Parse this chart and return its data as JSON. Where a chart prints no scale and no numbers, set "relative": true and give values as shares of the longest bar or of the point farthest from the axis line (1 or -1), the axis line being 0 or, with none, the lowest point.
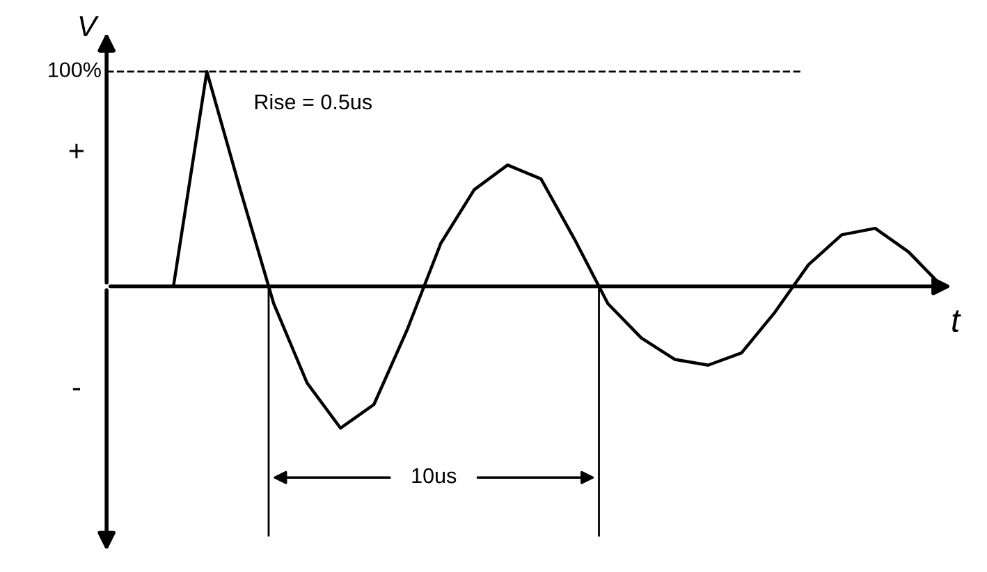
{
  "chart_data": {
    "type": "line",
    "relative": true,
    "xlabel": "t",
    "ylabel": "V",
    "categories": [
      null,
      null,
      null,
      null,
      null,
      null,
      null,
      null,
      null,
      null,
      null,
      null,
      null,
      null,
      null,
      null,
      null,
      null,
      null,
      null,
      null,
      null,
      null,
      null,
      null,
      null
    ],
    "series": [
      {
        "color": "#000000",
        "values": [
          null,
          null,
          0,
          1,
          0.45,
          -0.08,
          -0.45,
          -0.66,
          -0.55,
          -0.2,
          0.2,
          0.45,
          0.565,
          0.5,
          0.22,
          -0.08,
          -0.24,
          -0.34,
          -0.367,
          -0.31,
          -0.12,
          0.1,
          0.24,
          0.27,
          0.16,
          0
        ]
      }
    ],
    "ref_lines": [
      {
        "axis": "y",
        "value": 1,
        "label": "100%",
        "line_style": "dashed"
      }
    ],
    "annotations": [
      "Rise = 0.5us",
      "10us",
      "+",
      "-"
    ],
    "legend": false,
    "marker": "none",
    "line_style": "solid"
  }
}
